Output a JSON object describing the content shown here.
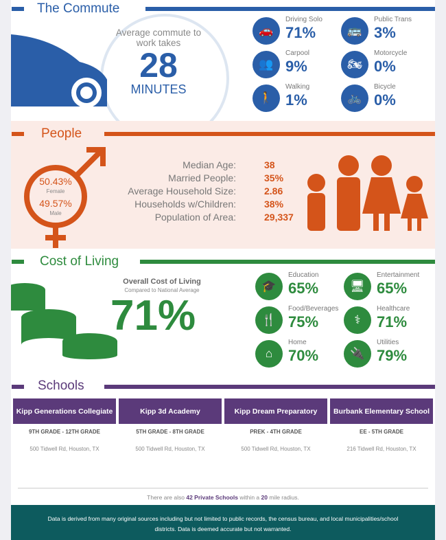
{
  "colors": {
    "commute": "#2a5ea8",
    "people": "#d4541a",
    "cost": "#2e8b3e",
    "schools": "#5b3a7a",
    "footer": "#0d5b5e"
  },
  "commute": {
    "title": "The Commute",
    "intro": "Average commute to work takes",
    "minutes": "28",
    "unit": "MINUTES",
    "modes": [
      {
        "label": "Driving Solo",
        "value": "71%",
        "icon": "car-icon"
      },
      {
        "label": "Public Trans",
        "value": "3%",
        "icon": "bus-icon"
      },
      {
        "label": "Carpool",
        "value": "9%",
        "icon": "group-icon"
      },
      {
        "label": "Motorcycle",
        "value": "0%",
        "icon": "motorcycle-icon"
      },
      {
        "label": "Walking",
        "value": "1%",
        "icon": "person-icon"
      },
      {
        "label": "Bicycle",
        "value": "0%",
        "icon": "bicycle-icon"
      }
    ]
  },
  "people": {
    "title": "People",
    "female_pct": "50.43%",
    "female_label": "Female",
    "male_pct": "49.57%",
    "male_label": "Male",
    "stats": [
      {
        "label": "Median Age:",
        "value": "38"
      },
      {
        "label": "Married People:",
        "value": "35%"
      },
      {
        "label": "Average Household Size:",
        "value": "2.86"
      },
      {
        "label": "Households w/Children:",
        "value": "38%"
      },
      {
        "label": "Population of Area:",
        "value": "29,337"
      }
    ]
  },
  "cost": {
    "title": "Cost of Living",
    "overall_label": "Overall Cost of Living",
    "overall_sub": "Compared to National Average",
    "overall_value": "71%",
    "items": [
      {
        "label": "Education",
        "value": "65%",
        "icon": "graduation-cap-icon"
      },
      {
        "label": "Entertainment",
        "value": "65%",
        "icon": "monitor-icon"
      },
      {
        "label": "Food/Beverages",
        "value": "75%",
        "icon": "fork-knife-icon"
      },
      {
        "label": "Healthcare",
        "value": "71%",
        "icon": "doctor-icon"
      },
      {
        "label": "Home",
        "value": "70%",
        "icon": "home-icon"
      },
      {
        "label": "Utilities",
        "value": "79%",
        "icon": "plug-icon"
      }
    ]
  },
  "schools": {
    "title": "Schools",
    "list": [
      {
        "name": "Kipp Generations Collegiate",
        "grades": "9TH GRADE - 12TH GRADE",
        "address": "500 Tidwell Rd, Houston, TX"
      },
      {
        "name": "Kipp 3d Academy",
        "grades": "5TH GRADE - 8TH GRADE",
        "address": "500 Tidwell Rd, Houston, TX"
      },
      {
        "name": "Kipp Dream Preparatory",
        "grades": "PREK - 4TH GRADE",
        "address": "500 Tidwell Rd, Houston, TX"
      },
      {
        "name": "Burbank Elementary School",
        "grades": "EE - 5TH GRADE",
        "address": "216 Tidwell Rd, Houston, TX"
      }
    ],
    "private_pre": "There are also",
    "private_count": "42 Private Schools",
    "private_mid": "within a",
    "radius": "20",
    "private_post": "mile radius."
  },
  "footer": {
    "text": "Data is derived from many original sources including but not limited to public records, the census bureau, and local municipalities/school districts. Data is deemed accurate but not warranted."
  }
}
